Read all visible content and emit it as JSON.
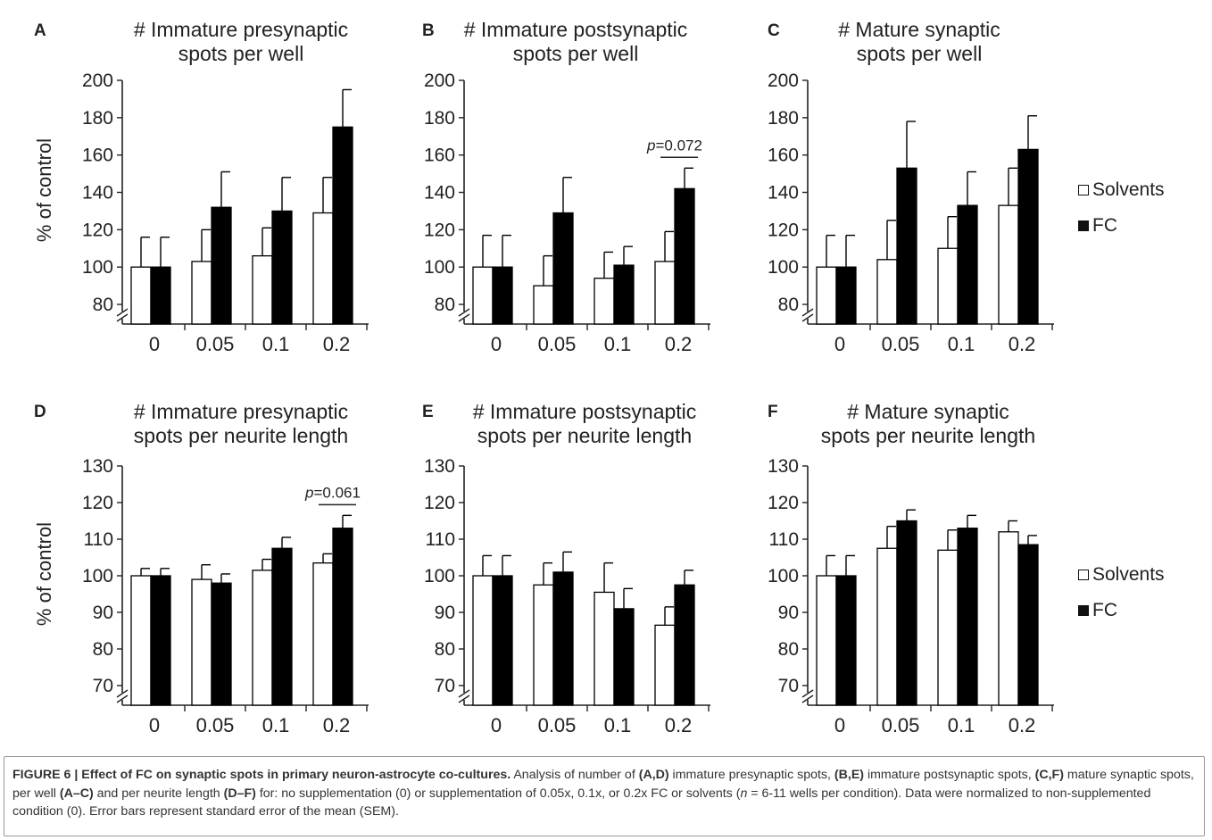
{
  "chart_data": [
    {
      "type": "bar",
      "panel": "A",
      "title": [
        "# Immature presynaptic",
        "spots per well"
      ],
      "ylabel": "% of control",
      "ylim": [
        80,
        200
      ],
      "yticks": [
        80,
        100,
        120,
        140,
        160,
        180,
        200
      ],
      "categories": [
        "0",
        "0.05",
        "0.1",
        "0.2"
      ],
      "series": [
        {
          "name": "Solvents",
          "values": [
            100,
            103,
            106,
            129
          ],
          "errors": [
            16,
            17,
            15,
            19
          ]
        },
        {
          "name": "FC",
          "values": [
            100,
            132,
            130,
            175
          ],
          "errors": [
            16,
            19,
            18,
            20
          ]
        }
      ],
      "annotation": null
    },
    {
      "type": "bar",
      "panel": "B",
      "title": [
        "# Immature postsynaptic",
        "spots per well"
      ],
      "ylabel": "",
      "ylim": [
        80,
        200
      ],
      "yticks": [
        80,
        100,
        120,
        140,
        160,
        180,
        200
      ],
      "categories": [
        "0",
        "0.05",
        "0.1",
        "0.2"
      ],
      "series": [
        {
          "name": "Solvents",
          "values": [
            100,
            90,
            94,
            103
          ],
          "errors": [
            17,
            16,
            14,
            16
          ]
        },
        {
          "name": "FC",
          "values": [
            100,
            129,
            101,
            142
          ],
          "errors": [
            17,
            19,
            10,
            11
          ]
        }
      ],
      "annotation": {
        "category": 3,
        "text": "p=0.072",
        "italic": "p",
        "rest": "=0.072"
      }
    },
    {
      "type": "bar",
      "panel": "C",
      "title": [
        "# Mature synaptic",
        "spots per well"
      ],
      "ylabel": "",
      "ylim": [
        80,
        200
      ],
      "yticks": [
        80,
        100,
        120,
        140,
        160,
        180,
        200
      ],
      "categories": [
        "0",
        "0.05",
        "0.1",
        "0.2"
      ],
      "series": [
        {
          "name": "Solvents",
          "values": [
            100,
            104,
            110,
            133
          ],
          "errors": [
            17,
            21,
            17,
            20
          ]
        },
        {
          "name": "FC",
          "values": [
            100,
            153,
            133,
            163
          ],
          "errors": [
            17,
            25,
            18,
            18
          ]
        }
      ],
      "annotation": null
    },
    {
      "type": "bar",
      "panel": "D",
      "title": [
        "# Immature presynaptic",
        "spots per neurite length"
      ],
      "ylabel": "% of control",
      "ylim": [
        70,
        130
      ],
      "yticks": [
        70,
        80,
        90,
        100,
        110,
        120,
        130
      ],
      "categories": [
        "0",
        "0.05",
        "0.1",
        "0.2"
      ],
      "series": [
        {
          "name": "Solvents",
          "values": [
            100,
            99,
            101.5,
            103.5
          ],
          "errors": [
            2,
            4,
            3,
            2.5
          ]
        },
        {
          "name": "FC",
          "values": [
            100,
            98,
            107.5,
            113
          ],
          "errors": [
            2,
            2.5,
            3,
            3.5
          ]
        }
      ],
      "annotation": {
        "category": 3,
        "text": "p=0.061",
        "italic": "p",
        "rest": "=0.061"
      }
    },
    {
      "type": "bar",
      "panel": "E",
      "title": [
        "# Immature postsynaptic",
        "spots per neurite length"
      ],
      "ylabel": "",
      "ylim": [
        70,
        130
      ],
      "yticks": [
        70,
        80,
        90,
        100,
        110,
        120,
        130
      ],
      "categories": [
        "0",
        "0.05",
        "0.1",
        "0.2"
      ],
      "series": [
        {
          "name": "Solvents",
          "values": [
            100,
            97.5,
            95.5,
            86.5
          ],
          "errors": [
            5.5,
            6,
            8,
            5
          ]
        },
        {
          "name": "FC",
          "values": [
            100,
            101,
            91,
            97.5
          ],
          "errors": [
            5.5,
            5.5,
            5.5,
            4
          ]
        }
      ],
      "annotation": null
    },
    {
      "type": "bar",
      "panel": "F",
      "title": [
        "# Mature synaptic",
        "spots per neurite length"
      ],
      "ylabel": "",
      "ylim": [
        70,
        130
      ],
      "yticks": [
        70,
        80,
        90,
        100,
        110,
        120,
        130
      ],
      "categories": [
        "0",
        "0.05",
        "0.1",
        "0.2"
      ],
      "series": [
        {
          "name": "Solvents",
          "values": [
            100,
            107.5,
            107,
            112
          ],
          "errors": [
            5.5,
            6,
            5.5,
            3
          ]
        },
        {
          "name": "FC",
          "values": [
            100,
            115,
            113,
            108.5
          ],
          "errors": [
            5.5,
            3,
            3.5,
            2.5
          ]
        }
      ],
      "annotation": null
    }
  ],
  "legend": {
    "solvents": "Solvents",
    "fc": "FC"
  },
  "caption": {
    "figure_label": "FIGURE 6 |",
    "title": "Effect of FC on synaptic spots in primary neuron-astrocyte co-cultures.",
    "t1": " Analysis of number of ",
    "b1": "(A,D)",
    "t2": " immature presynaptic spots, ",
    "b2": "(B,E)",
    "t3": " immature postsynaptic spots, ",
    "b3": "(C,F)",
    "t4": " mature synaptic spots, per well ",
    "b4": "(A–C)",
    "t5": " and per neurite length ",
    "b5": "(D–F)",
    "t6": " for: no supplementation (0) or supplementation of 0.05x, 0.1x, or 0.2x FC or solvents (",
    "n_italic": "n",
    "t7": " = 6-11 wells per condition). Data were normalized to non-supplemented condition (0). Error bars represent standard error of the mean (SEM)."
  }
}
